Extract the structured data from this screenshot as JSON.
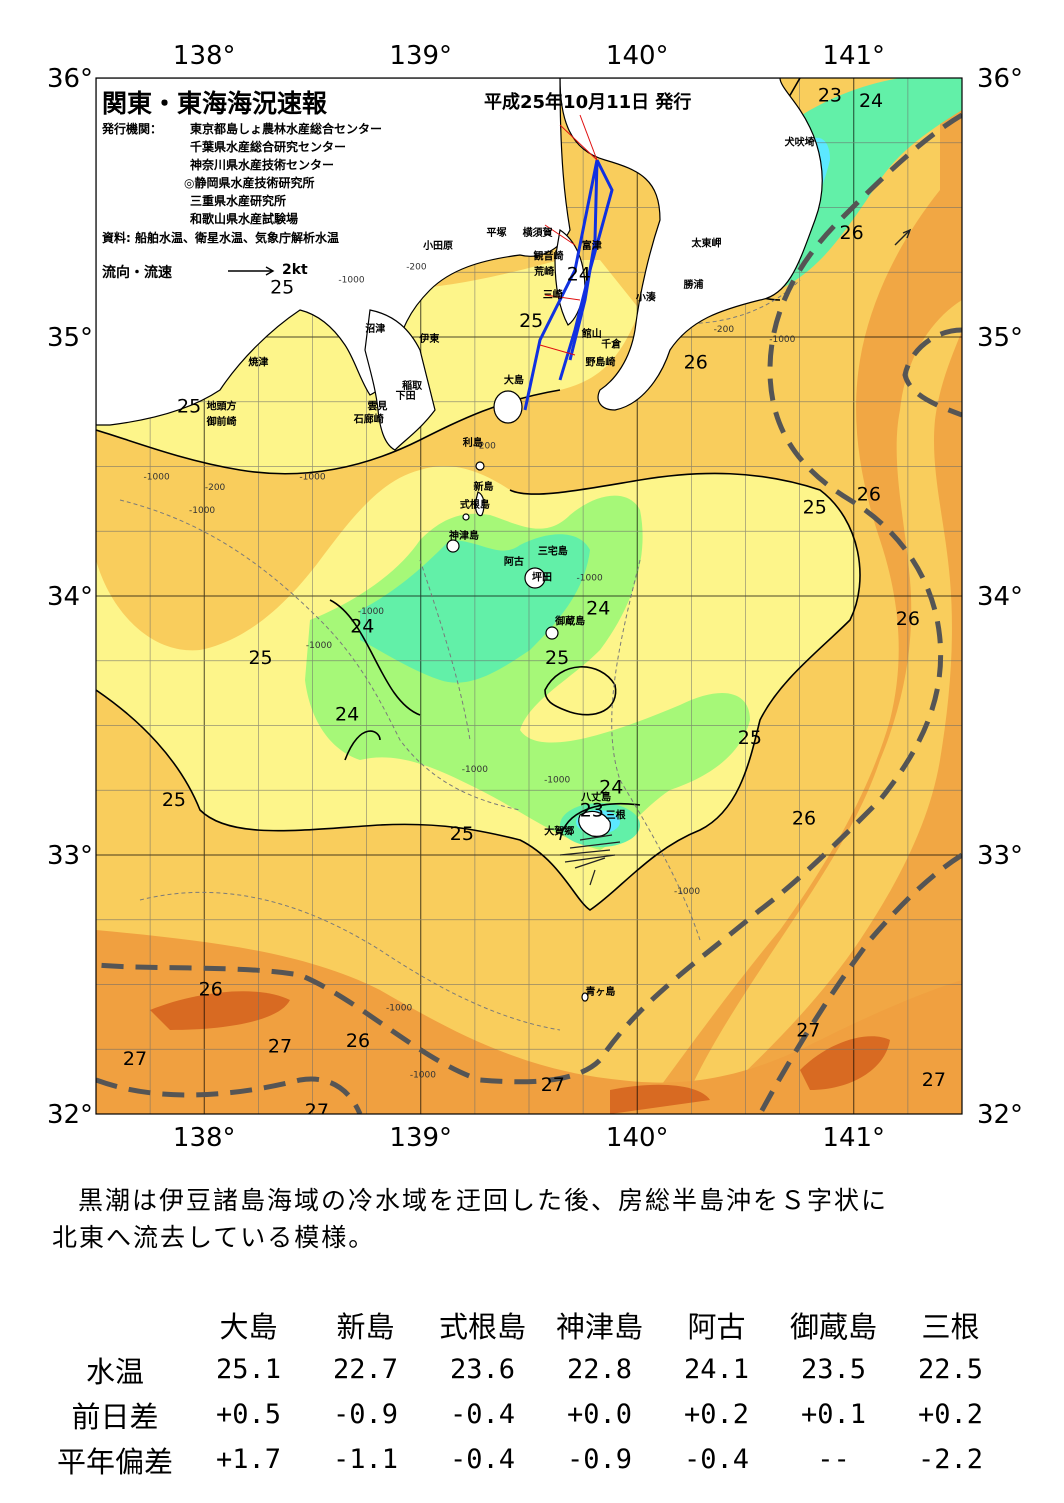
{
  "header": {
    "title": "関東・東海海況速報",
    "issued": "平成25年10月11日 発行",
    "org_label": "発行機関：",
    "organizations": [
      "東京都島しょ農林水産総合センター",
      "千葉県水産総合研究センター",
      "神奈川県水産技術センター",
      "◎静岡県水産技術研究所",
      "三重県水産研究所",
      "和歌山県水産試験場"
    ],
    "source": "資料: 船舶水温、衛星水温、気象庁解析水温",
    "flow_legend": "流向・流速",
    "flow_scale": "2kt"
  },
  "map": {
    "lon_ticks": [
      "138°",
      "139°",
      "140°",
      "141°"
    ],
    "lat_ticks": [
      "36°",
      "35°",
      "34°",
      "33°",
      "32°"
    ],
    "lon_range": [
      137.5,
      141.5
    ],
    "lat_range": [
      32,
      36
    ],
    "colors": {
      "t22": "#5ce8ff",
      "t23": "#62f0a8",
      "t24": "#a6f878",
      "t25": "#fdf58a",
      "t26": "#f9cd5c",
      "t27": "#f0a040",
      "t28": "#d86a22",
      "land": "#ffffff",
      "kuroshio_axis": "#555555"
    },
    "isotherm_labels": [
      {
        "text": "23",
        "lon": 140.89,
        "lat": 35.92
      },
      {
        "text": "24",
        "lon": 141.08,
        "lat": 35.9
      },
      {
        "text": "26",
        "lon": 140.99,
        "lat": 35.39
      },
      {
        "text": "25",
        "lon": 138.36,
        "lat": 35.18
      },
      {
        "text": "24",
        "lon": 139.73,
        "lat": 35.23
      },
      {
        "text": "25",
        "lon": 139.51,
        "lat": 35.05
      },
      {
        "text": "25",
        "lon": 137.93,
        "lat": 34.72
      },
      {
        "text": "26",
        "lon": 140.27,
        "lat": 34.89
      },
      {
        "text": "25",
        "lon": 140.82,
        "lat": 34.33
      },
      {
        "text": "26",
        "lon": 141.07,
        "lat": 34.38
      },
      {
        "text": "24",
        "lon": 139.82,
        "lat": 33.94
      },
      {
        "text": "24",
        "lon": 138.73,
        "lat": 33.87
      },
      {
        "text": "26",
        "lon": 141.25,
        "lat": 33.9
      },
      {
        "text": "25",
        "lon": 138.26,
        "lat": 33.75
      },
      {
        "text": "25",
        "lon": 139.63,
        "lat": 33.75
      },
      {
        "text": "24",
        "lon": 138.66,
        "lat": 33.53
      },
      {
        "text": "25",
        "lon": 140.52,
        "lat": 33.44
      },
      {
        "text": "24",
        "lon": 139.88,
        "lat": 33.25
      },
      {
        "text": "25",
        "lon": 137.86,
        "lat": 33.2
      },
      {
        "text": "23",
        "lon": 139.79,
        "lat": 33.16
      },
      {
        "text": "26",
        "lon": 140.77,
        "lat": 33.13
      },
      {
        "text": "25",
        "lon": 139.19,
        "lat": 33.07
      },
      {
        "text": "26",
        "lon": 138.03,
        "lat": 32.47
      },
      {
        "text": "27",
        "lon": 140.79,
        "lat": 32.31
      },
      {
        "text": "27",
        "lon": 137.68,
        "lat": 32.2
      },
      {
        "text": "27",
        "lon": 138.35,
        "lat": 32.25
      },
      {
        "text": "26",
        "lon": 138.71,
        "lat": 32.27
      },
      {
        "text": "27",
        "lon": 139.61,
        "lat": 32.1
      },
      {
        "text": "27",
        "lon": 141.37,
        "lat": 32.12
      },
      {
        "text": "27",
        "lon": 138.52,
        "lat": 32.0
      }
    ],
    "depth_labels": [
      {
        "text": "-1000",
        "lon": 138.68,
        "lat": 35.21
      },
      {
        "text": "-200",
        "lon": 138.98,
        "lat": 35.26
      },
      {
        "text": "-200",
        "lon": 140.4,
        "lat": 35.02
      },
      {
        "text": "-1000",
        "lon": 140.67,
        "lat": 34.98
      },
      {
        "text": "-200",
        "lon": 139.3,
        "lat": 34.57
      },
      {
        "text": "-200",
        "lon": 138.05,
        "lat": 34.41
      },
      {
        "text": "-1000",
        "lon": 137.78,
        "lat": 34.45
      },
      {
        "text": "-1000",
        "lon": 137.99,
        "lat": 34.32
      },
      {
        "text": "-1000",
        "lon": 138.5,
        "lat": 34.45
      },
      {
        "text": "-1000",
        "lon": 138.77,
        "lat": 33.93
      },
      {
        "text": "-1000",
        "lon": 138.53,
        "lat": 33.8
      },
      {
        "text": "-1000",
        "lon": 139.25,
        "lat": 33.32
      },
      {
        "text": "-1000",
        "lon": 139.63,
        "lat": 33.28
      },
      {
        "text": "-1000",
        "lon": 140.23,
        "lat": 32.85
      },
      {
        "text": "-1000",
        "lon": 138.9,
        "lat": 32.4
      },
      {
        "text": "-1000",
        "lon": 139.01,
        "lat": 32.14
      },
      {
        "text": "-1000",
        "lon": 139.78,
        "lat": 34.06
      }
    ],
    "place_names": [
      {
        "text": "犬吠埼",
        "lon": 140.75,
        "lat": 35.74
      },
      {
        "text": "太東岬",
        "lon": 140.32,
        "lat": 35.35
      },
      {
        "text": "勝浦",
        "lon": 140.26,
        "lat": 35.19
      },
      {
        "text": "小湊",
        "lon": 140.04,
        "lat": 35.14
      },
      {
        "text": "館山",
        "lon": 139.79,
        "lat": 35.0
      },
      {
        "text": "千倉",
        "lon": 139.88,
        "lat": 34.96
      },
      {
        "text": "野島崎",
        "lon": 139.83,
        "lat": 34.89
      },
      {
        "text": "富津",
        "lon": 139.79,
        "lat": 35.34
      },
      {
        "text": "横須賀",
        "lon": 139.54,
        "lat": 35.39
      },
      {
        "text": "平塚",
        "lon": 139.35,
        "lat": 35.39
      },
      {
        "text": "観音崎",
        "lon": 139.59,
        "lat": 35.3
      },
      {
        "text": "荒崎",
        "lon": 139.57,
        "lat": 35.24
      },
      {
        "text": "三崎",
        "lon": 139.61,
        "lat": 35.15
      },
      {
        "text": "小田原",
        "lon": 139.08,
        "lat": 35.34
      },
      {
        "text": "沼津",
        "lon": 138.79,
        "lat": 35.02
      },
      {
        "text": "伊東",
        "lon": 139.04,
        "lat": 34.98
      },
      {
        "text": "焼津",
        "lon": 138.25,
        "lat": 34.89
      },
      {
        "text": "稲取",
        "lon": 138.96,
        "lat": 34.8
      },
      {
        "text": "下田",
        "lon": 138.93,
        "lat": 34.76
      },
      {
        "text": "雲見",
        "lon": 138.8,
        "lat": 34.72
      },
      {
        "text": "石廊崎",
        "lon": 138.76,
        "lat": 34.67
      },
      {
        "text": "地頭方",
        "lon": 138.08,
        "lat": 34.72
      },
      {
        "text": "御前崎",
        "lon": 138.08,
        "lat": 34.66
      },
      {
        "text": "大島",
        "lon": 139.43,
        "lat": 34.82
      },
      {
        "text": "利島",
        "lon": 139.24,
        "lat": 34.58
      },
      {
        "text": "新島",
        "lon": 139.29,
        "lat": 34.41
      },
      {
        "text": "式根島",
        "lon": 139.25,
        "lat": 34.34
      },
      {
        "text": "神津島",
        "lon": 139.2,
        "lat": 34.22
      },
      {
        "text": "三宅島",
        "lon": 139.61,
        "lat": 34.16
      },
      {
        "text": "阿古",
        "lon": 139.43,
        "lat": 34.12
      },
      {
        "text": "坪田",
        "lon": 139.56,
        "lat": 34.06
      },
      {
        "text": "御蔵島",
        "lon": 139.69,
        "lat": 33.89
      },
      {
        "text": "八丈島",
        "lon": 139.81,
        "lat": 33.21
      },
      {
        "text": "三根",
        "lon": 139.9,
        "lat": 33.14
      },
      {
        "text": "大賀郷",
        "lon": 139.64,
        "lat": 33.08
      },
      {
        "text": "青ヶ島",
        "lon": 139.83,
        "lat": 32.46
      }
    ]
  },
  "summary": {
    "line1": "黒潮は伊豆諸島海域の冷水域を迂回した後、房総半島沖をＳ字状に",
    "line2": "北東へ流去している模様。"
  },
  "stations": {
    "names": [
      "大島",
      "新島",
      "式根島",
      "神津島",
      "阿古",
      "御蔵島",
      "三根"
    ],
    "rows": [
      {
        "label": "水温",
        "values": [
          "25.1",
          "22.7",
          "23.6",
          "22.8",
          "24.1",
          "23.5",
          "22.5"
        ]
      },
      {
        "label": "前日差",
        "values": [
          "+0.5",
          "-0.9",
          "-0.4",
          "+0.0",
          "+0.2",
          "+0.1",
          "+0.2"
        ]
      },
      {
        "label": "平年偏差",
        "values": [
          "+1.7",
          "-1.1",
          "-0.4",
          "-0.9",
          "-0.4",
          "--",
          "-2.2"
        ]
      }
    ]
  }
}
